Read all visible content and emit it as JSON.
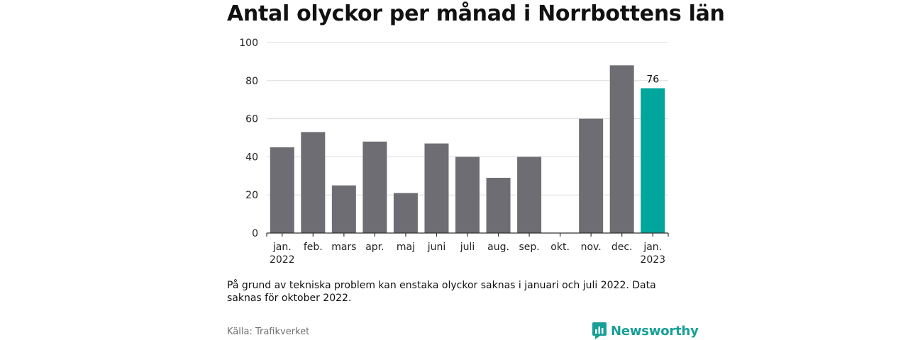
{
  "title": "Antal olyckor per månad i Norrbottens län",
  "note": "På grund av tekniska problem kan enstaka olyckor saknas i januari och juli 2022. Data saknas för oktober 2022.",
  "source": "Källa: Trafikverket",
  "brand": {
    "name": "Newsworthy",
    "icon": "newsworthy-logo-icon",
    "color": "#17a097"
  },
  "colors": {
    "bar": "#6e6d73",
    "highlight": "#00a69c",
    "grid": "#dcdcdc",
    "axis": "#333333"
  },
  "chart_data": {
    "type": "bar",
    "categories": [
      [
        "jan.",
        "2022"
      ],
      [
        "feb."
      ],
      [
        "mars"
      ],
      [
        "apr."
      ],
      [
        "maj"
      ],
      [
        "juni"
      ],
      [
        "juli"
      ],
      [
        "aug."
      ],
      [
        "sep."
      ],
      [
        "okt."
      ],
      [
        "nov."
      ],
      [
        "dec."
      ],
      [
        "jan.",
        "2023"
      ]
    ],
    "values": [
      45,
      53,
      25,
      48,
      21,
      47,
      40,
      29,
      40,
      null,
      60,
      88,
      76
    ],
    "highlight_index": 12,
    "data_labels": [
      {
        "index": 12,
        "text": "76"
      }
    ],
    "yticks": [
      0,
      20,
      40,
      60,
      80,
      100
    ],
    "ylim": [
      0,
      100
    ],
    "grid": true
  }
}
